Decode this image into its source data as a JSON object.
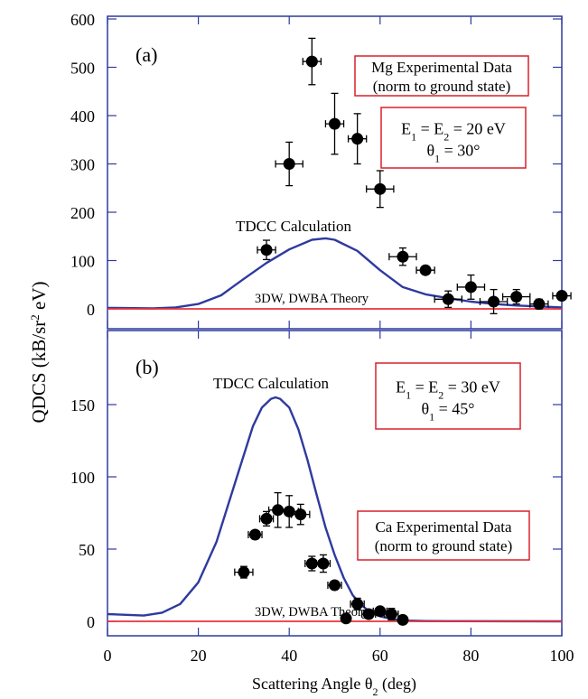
{
  "figure": {
    "ylabel_main": "QDCS (kB/sr",
    "ylabel_sup": "2",
    "ylabel_tail": " eV)",
    "xlabel_main": "Scattering Angle θ",
    "xlabel_sub": "2",
    "xlabel_tail": " (deg)"
  },
  "colors": {
    "theory_tdcc": "#2e3a9e",
    "theory_3dw": "#e8323c",
    "data": "#000000",
    "frame": "#2e3a9e",
    "box_border": "#d9202a"
  },
  "chart_data": [
    {
      "type": "scatter",
      "panel_label": "(a)",
      "xlim": [
        0,
        100
      ],
      "ylim": [
        0,
        600
      ],
      "yticks": [
        0,
        100,
        200,
        300,
        400,
        500,
        600
      ],
      "xticks": [
        0,
        20,
        40,
        60,
        80,
        100
      ],
      "legend_box": {
        "line1": "Mg Experimental Data",
        "line2": "(norm to ground state)"
      },
      "energy_box": {
        "e_main": "E",
        "e_sub1": "1",
        "e_mid": " = E",
        "e_sub2": "2",
        "e_tail": " = 20 eV",
        "t_main": "θ",
        "t_sub": "1",
        "t_tail": " = 30°"
      },
      "annotations": {
        "tdcc": "TDCC Calculation",
        "dwba": "3DW, DWBA Theory"
      },
      "series": [
        {
          "name": "Mg Experimental Data",
          "kind": "points",
          "points": [
            {
              "x": 35,
              "y": 122,
              "xerr": 2,
              "yerr": 20
            },
            {
              "x": 40,
              "y": 300,
              "xerr": 3,
              "yerr": 45
            },
            {
              "x": 45,
              "y": 512,
              "xerr": 2,
              "yerr": 48
            },
            {
              "x": 50,
              "y": 383,
              "xerr": 2,
              "yerr": 63
            },
            {
              "x": 55,
              "y": 352,
              "xerr": 2,
              "yerr": 52
            },
            {
              "x": 60,
              "y": 248,
              "xerr": 3,
              "yerr": 38
            },
            {
              "x": 65,
              "y": 108,
              "xerr": 3,
              "yerr": 18
            },
            {
              "x": 70,
              "y": 80,
              "xerr": 2,
              "yerr": 0
            },
            {
              "x": 75,
              "y": 20,
              "xerr": 3,
              "yerr": 17
            },
            {
              "x": 80,
              "y": 45,
              "xerr": 3,
              "yerr": 25
            },
            {
              "x": 85,
              "y": 15,
              "xerr": 3,
              "yerr": 25
            },
            {
              "x": 90,
              "y": 25,
              "xerr": 3,
              "yerr": 15
            },
            {
              "x": 95,
              "y": 10,
              "xerr": 2,
              "yerr": 10
            },
            {
              "x": 100,
              "y": 27,
              "xerr": 2,
              "yerr": 0
            }
          ]
        },
        {
          "name": "TDCC Calculation",
          "kind": "curve",
          "x": [
            0,
            10,
            15,
            20,
            25,
            30,
            35,
            40,
            45,
            48,
            50,
            55,
            60,
            65,
            70,
            75,
            80,
            85,
            90,
            95,
            100
          ],
          "y": [
            2,
            1,
            3,
            10,
            28,
            62,
            95,
            123,
            143,
            146,
            143,
            120,
            80,
            45,
            30,
            22,
            15,
            10,
            7,
            5,
            3
          ]
        },
        {
          "name": "3DW, DWBA Theory",
          "kind": "curve",
          "x": [
            0,
            100
          ],
          "y": [
            0,
            0
          ]
        }
      ]
    },
    {
      "type": "scatter",
      "panel_label": "(b)",
      "xlim": [
        0,
        100
      ],
      "ylim": [
        -10,
        195
      ],
      "yticks": [
        0,
        50,
        100,
        150
      ],
      "xticks": [
        0,
        20,
        40,
        60,
        80,
        100
      ],
      "legend_box": {
        "line1": "Ca Experimental Data",
        "line2": "(norm to ground state)"
      },
      "energy_box": {
        "e_main": "E",
        "e_sub1": "1",
        "e_mid": " = E",
        "e_sub2": "2",
        "e_tail": " = 30 eV",
        "t_main": "θ",
        "t_sub": "1",
        "t_tail": " = 45°"
      },
      "annotations": {
        "tdcc": "TDCC Calculation",
        "dwba": "3DW, DWBA Theory"
      },
      "series": [
        {
          "name": "Ca Experimental Data",
          "kind": "points",
          "points": [
            {
              "x": 30,
              "y": 34,
              "xerr": 2,
              "yerr": 4
            },
            {
              "x": 32.5,
              "y": 60,
              "xerr": 1.5,
              "yerr": 0
            },
            {
              "x": 35,
              "y": 71,
              "xerr": 1.5,
              "yerr": 5
            },
            {
              "x": 37.5,
              "y": 77,
              "xerr": 2,
              "yerr": 12
            },
            {
              "x": 40,
              "y": 76,
              "xerr": 2,
              "yerr": 11
            },
            {
              "x": 42.5,
              "y": 74,
              "xerr": 2,
              "yerr": 7
            },
            {
              "x": 45,
              "y": 40,
              "xerr": 1.5,
              "yerr": 5
            },
            {
              "x": 47.5,
              "y": 40,
              "xerr": 1.5,
              "yerr": 6
            },
            {
              "x": 50,
              "y": 25,
              "xerr": 1.5,
              "yerr": 0
            },
            {
              "x": 52.5,
              "y": 2,
              "xerr": 0,
              "yerr": 0
            },
            {
              "x": 55,
              "y": 12,
              "xerr": 1.5,
              "yerr": 4
            },
            {
              "x": 57.5,
              "y": 5,
              "xerr": 1.5,
              "yerr": 3
            },
            {
              "x": 60,
              "y": 7,
              "xerr": 1.5,
              "yerr": 2
            },
            {
              "x": 62.5,
              "y": 5,
              "xerr": 1.5,
              "yerr": 4
            },
            {
              "x": 65,
              "y": 1,
              "xerr": 0,
              "yerr": 0
            }
          ]
        },
        {
          "name": "TDCC Calculation",
          "kind": "curve",
          "x": [
            0,
            8,
            12,
            16,
            20,
            24,
            28,
            32,
            34,
            36,
            37,
            38,
            40,
            42,
            44,
            46,
            48,
            50,
            52,
            54,
            56,
            58,
            60,
            62,
            64,
            66,
            70,
            75,
            100
          ],
          "y": [
            5,
            4,
            6,
            12,
            27,
            55,
            95,
            135,
            148,
            154,
            155,
            154,
            148,
            133,
            112,
            88,
            65,
            46,
            30,
            18,
            11,
            6,
            3.5,
            2,
            1,
            0.5,
            0.2,
            0.1,
            0
          ]
        },
        {
          "name": "3DW, DWBA Theory",
          "kind": "curve",
          "x": [
            0,
            100
          ],
          "y": [
            0,
            0
          ]
        }
      ]
    }
  ]
}
